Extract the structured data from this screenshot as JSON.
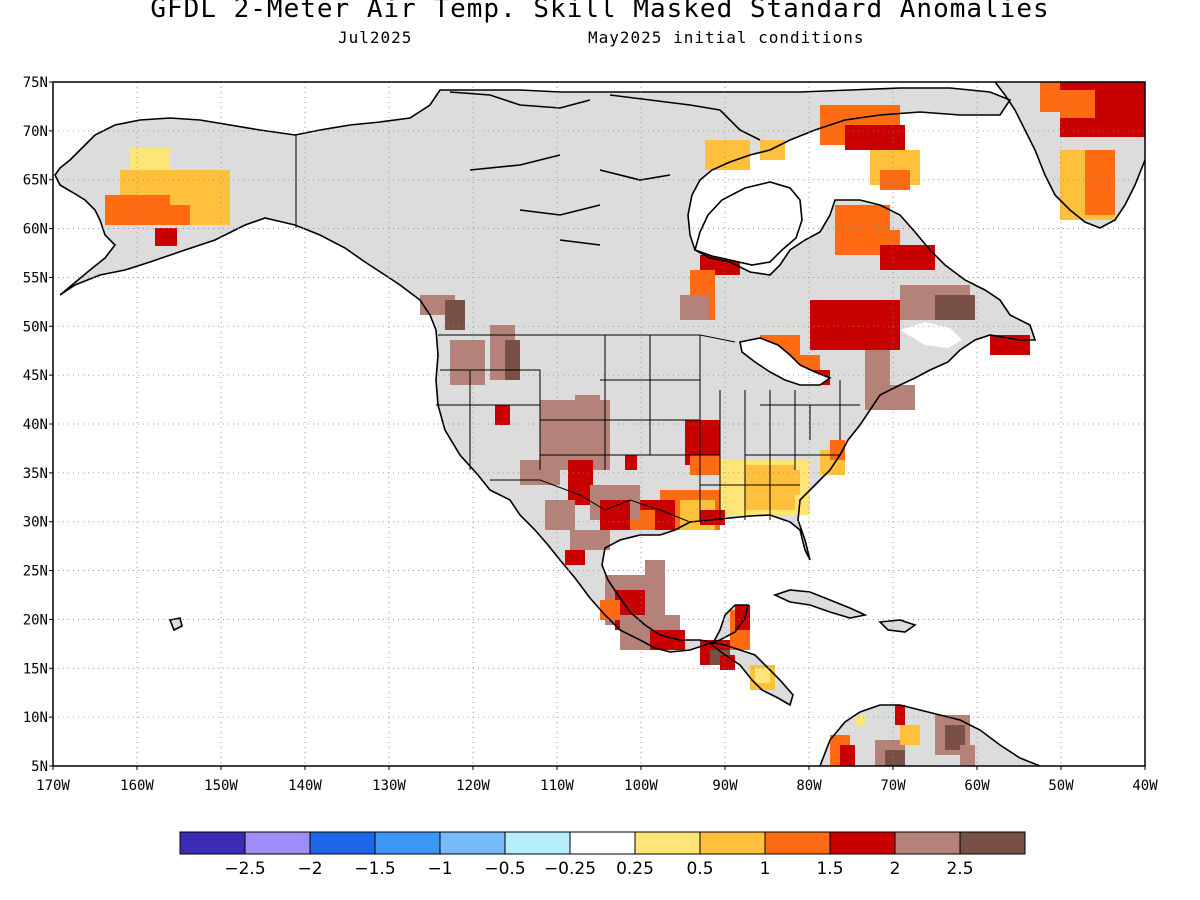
{
  "title": "GFDL 2-Meter Air Temp. Skill Masked Standard Anomalies",
  "subtitle_left": "Jul2025",
  "subtitle_right": "May2025 initial conditions",
  "axes": {
    "lat_labels": [
      "75N",
      "70N",
      "65N",
      "60N",
      "55N",
      "50N",
      "45N",
      "40N",
      "35N",
      "30N",
      "25N",
      "20N",
      "15N",
      "10N",
      "5N"
    ],
    "lon_labels": [
      "170W",
      "160W",
      "150W",
      "140W",
      "130W",
      "120W",
      "110W",
      "100W",
      "90W",
      "80W",
      "70W",
      "60W",
      "50W",
      "40W"
    ],
    "gridlines": "dotted"
  },
  "legend": {
    "colors": [
      "#3a2db3",
      "#a08cf5",
      "#1f66e6",
      "#3c96f5",
      "#78b9fa",
      "#b3eefa",
      "#ffffff",
      "#ffe578",
      "#ffc03c",
      "#ff6b12",
      "#c80000",
      "#b48278",
      "#785046"
    ],
    "labels": [
      "−2.5",
      "−2",
      "−1.5",
      "−1",
      "−0.5",
      "−0.25",
      "0.25",
      "0.5",
      "1",
      "1.5",
      "2",
      "2.5"
    ]
  },
  "colors": {
    "land_masked": "#dcdcdc",
    "ocean": "#ffffff",
    "coast": "#000000"
  }
}
